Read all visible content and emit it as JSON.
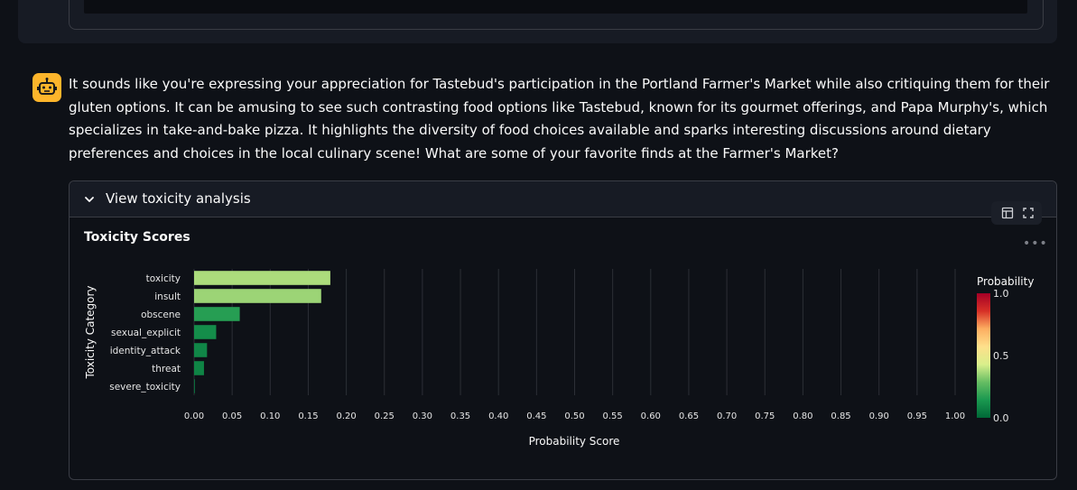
{
  "message": {
    "text": "It sounds like you're expressing your appreciation for Tastebud's participation in the Portland Farmer's Market while also critiquing them for their gluten options. It can be amusing to see such contrasting food options like Tastebud, known for its gourmet offerings, and Papa Murphy's, which specializes in take-and-bake pizza. It highlights the diversity of food choices available and sparks interesting discussions around dietary preferences and choices in the local culinary scene! What are some of your favorite finds at the Farmer's Market?",
    "avatar_icon": "robot-icon",
    "avatar_color": "#fdb52b"
  },
  "expander": {
    "label": "View toxicity analysis",
    "icon": "chevron-down-icon",
    "expanded": true
  },
  "toolbar": {
    "icons": [
      "table-icon",
      "fullscreen-icon"
    ],
    "more_icon": "more-horizontal-icon"
  },
  "chart_data": {
    "type": "bar",
    "orientation": "horizontal",
    "title": "Toxicity Scores",
    "xlabel": "Probability Score",
    "ylabel": "Toxicity Category",
    "xlim": [
      0,
      1
    ],
    "xticks": [
      0,
      0.05,
      0.1,
      0.15,
      0.2,
      0.25,
      0.3,
      0.35,
      0.4,
      0.45,
      0.5,
      0.55,
      0.6,
      0.65,
      0.7,
      0.75,
      0.8,
      0.85,
      0.9,
      0.95,
      1.0
    ],
    "xtick_labels": [
      "0.00",
      "0.05",
      "0.10",
      "0.15",
      "0.20",
      "0.25",
      "0.30",
      "0.35",
      "0.40",
      "0.45",
      "0.50",
      "0.55",
      "0.60",
      "0.65",
      "0.70",
      "0.75",
      "0.80",
      "0.85",
      "0.90",
      "0.95",
      "1.00"
    ],
    "categories": [
      "toxicity",
      "insult",
      "obscene",
      "sexual_explicit",
      "identity_attack",
      "threat",
      "severe_toxicity"
    ],
    "values": [
      0.179,
      0.167,
      0.06,
      0.029,
      0.017,
      0.013,
      0.001
    ],
    "grid": true,
    "colorscale": {
      "title": "Probability",
      "range": [
        0,
        1
      ],
      "tick_labels": [
        "1.0",
        "0.5",
        "0.0"
      ],
      "tick_values": [
        1.0,
        0.5,
        0.0
      ],
      "colors": [
        "#006837",
        "#1a9850",
        "#66bd63",
        "#d9ef8b",
        "#fee08b",
        "#fdae61",
        "#d73027",
        "#a50026"
      ]
    }
  }
}
